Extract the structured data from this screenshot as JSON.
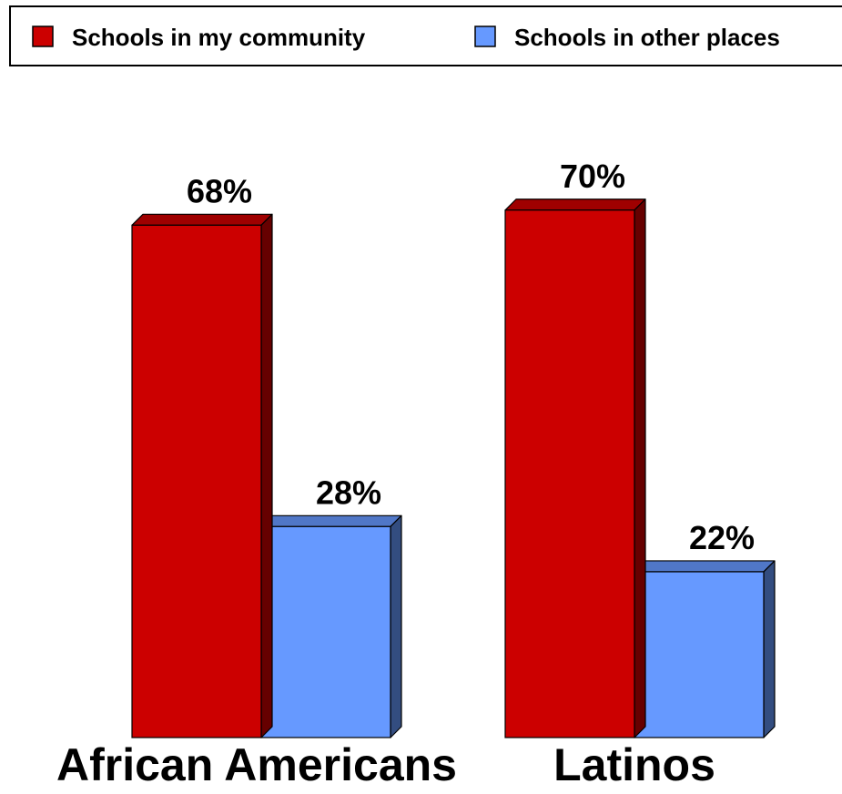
{
  "chart_data": {
    "type": "bar",
    "categories": [
      "African Americans",
      "Latinos"
    ],
    "series": [
      {
        "name": "Schools in my community",
        "values": [
          68,
          70
        ],
        "labels": [
          "68%",
          "70%"
        ],
        "color": "#CC0000"
      },
      {
        "name": "Schools in other places",
        "values": [
          28,
          22
        ],
        "labels": [
          "28%",
          "22%"
        ],
        "color": "#6699FF"
      }
    ],
    "ylim": [
      0,
      100
    ],
    "grid": false,
    "legend_position": "top"
  }
}
